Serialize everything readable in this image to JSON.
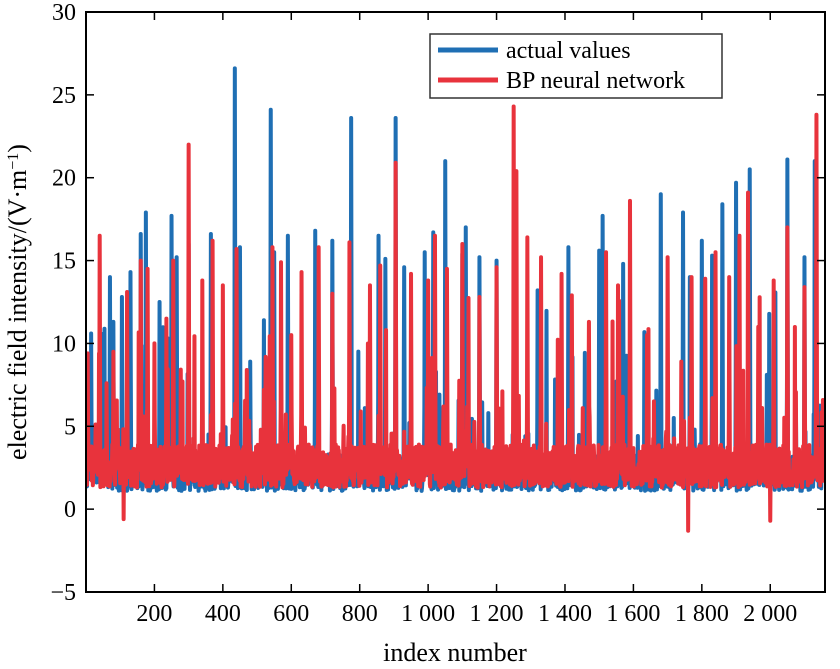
{
  "chart_data": {
    "type": "line",
    "title": "",
    "xlabel": "index number",
    "ylabel": "electric field intensity/(V·m",
    "ylabel_exp": "−1",
    "ylabel_tail": ")",
    "xlim": [
      0,
      2160
    ],
    "ylim": [
      -5,
      30
    ],
    "x_ticks": [
      {
        "value": 200,
        "label": "200"
      },
      {
        "value": 400,
        "label": "400"
      },
      {
        "value": 600,
        "label": "600"
      },
      {
        "value": 800,
        "label": "800"
      },
      {
        "value": 1000,
        "label": "1 000"
      },
      {
        "value": 1200,
        "label": "1 200"
      },
      {
        "value": 1400,
        "label": "1 400"
      },
      {
        "value": 1600,
        "label": "1 600"
      },
      {
        "value": 1800,
        "label": "1 800"
      },
      {
        "value": 2000,
        "label": "2 000"
      }
    ],
    "y_ticks": [
      {
        "value": -5,
        "label": "−5"
      },
      {
        "value": 0,
        "label": "0"
      },
      {
        "value": 5,
        "label": "5"
      },
      {
        "value": 10,
        "label": "10"
      },
      {
        "value": 15,
        "label": "15"
      },
      {
        "value": 20,
        "label": "20"
      },
      {
        "value": 25,
        "label": "25"
      },
      {
        "value": 30,
        "label": "30"
      }
    ],
    "grid": false,
    "legend_position": "top-right",
    "series": [
      {
        "name": "actual values",
        "color": "#1f6fb4",
        "baseline": 2.2,
        "noise": 1.1,
        "floor": 1.1,
        "peaks": [
          [
            15,
            10.6
          ],
          [
            70,
            14
          ],
          [
            80,
            11.3
          ],
          [
            105,
            12.8
          ],
          [
            130,
            14.3
          ],
          [
            160,
            16.6
          ],
          [
            175,
            17.9
          ],
          [
            215,
            12.5
          ],
          [
            250,
            17.7
          ],
          [
            265,
            15.2
          ],
          [
            300,
            16
          ],
          [
            365,
            16.6
          ],
          [
            435,
            26.6
          ],
          [
            450,
            15.8
          ],
          [
            480,
            8.9
          ],
          [
            520,
            11.4
          ],
          [
            540,
            24.1
          ],
          [
            550,
            15.5
          ],
          [
            590,
            16.5
          ],
          [
            670,
            16.8
          ],
          [
            720,
            16.2
          ],
          [
            775,
            23.6
          ],
          [
            855,
            16.5
          ],
          [
            875,
            15.1
          ],
          [
            905,
            23.6
          ],
          [
            930,
            14.6
          ],
          [
            990,
            15.5
          ],
          [
            1015,
            16.7
          ],
          [
            1050,
            21
          ],
          [
            1100,
            15.4
          ],
          [
            1110,
            17
          ],
          [
            1150,
            15.2
          ],
          [
            1200,
            15
          ],
          [
            1250,
            5.5
          ],
          [
            1320,
            13.2
          ],
          [
            1410,
            15.8
          ],
          [
            1500,
            15.6
          ],
          [
            1510,
            17.7
          ],
          [
            1570,
            14.8
          ],
          [
            1680,
            19
          ],
          [
            1745,
            17.9
          ],
          [
            1765,
            14
          ],
          [
            1800,
            16.2
          ],
          [
            1830,
            15.3
          ],
          [
            1860,
            18.4
          ],
          [
            1900,
            19.7
          ],
          [
            1940,
            20.5
          ],
          [
            1990,
            8.1
          ],
          [
            2050,
            21.1
          ],
          [
            2100,
            15.2
          ],
          [
            2130,
            21
          ]
        ],
        "dips": []
      },
      {
        "name": "BP neural network",
        "color": "#e8333c",
        "baseline": 2.6,
        "noise": 1.3,
        "floor": 0.8,
        "peaks": [
          [
            5,
            9.4
          ],
          [
            40,
            16.5
          ],
          [
            60,
            7.6
          ],
          [
            80,
            9.5
          ],
          [
            120,
            13.1
          ],
          [
            160,
            15
          ],
          [
            180,
            14.5
          ],
          [
            200,
            10
          ],
          [
            235,
            11.5
          ],
          [
            255,
            15
          ],
          [
            300,
            22
          ],
          [
            340,
            13.8
          ],
          [
            370,
            16.2
          ],
          [
            400,
            13.5
          ],
          [
            440,
            15.7
          ],
          [
            470,
            8.4
          ],
          [
            520,
            7.2
          ],
          [
            545,
            15.8
          ],
          [
            570,
            14.9
          ],
          [
            600,
            10.5
          ],
          [
            630,
            14.3
          ],
          [
            680,
            15.8
          ],
          [
            720,
            13
          ],
          [
            770,
            16.1
          ],
          [
            830,
            13.5
          ],
          [
            860,
            14.7
          ],
          [
            905,
            20.9
          ],
          [
            950,
            14.2
          ],
          [
            1000,
            13.8
          ],
          [
            1020,
            16.5
          ],
          [
            1055,
            14.5
          ],
          [
            1100,
            16
          ],
          [
            1150,
            12.8
          ],
          [
            1200,
            14.6
          ],
          [
            1250,
            24.3
          ],
          [
            1258,
            20.4
          ],
          [
            1290,
            16.4
          ],
          [
            1330,
            15.2
          ],
          [
            1390,
            14.2
          ],
          [
            1420,
            12.9
          ],
          [
            1470,
            11.3
          ],
          [
            1520,
            15.5
          ],
          [
            1555,
            13.5
          ],
          [
            1590,
            18.6
          ],
          [
            1640,
            10.5
          ],
          [
            1660,
            6.5
          ],
          [
            1700,
            15.2
          ],
          [
            1740,
            8.9
          ],
          [
            1770,
            14
          ],
          [
            1810,
            13.9
          ],
          [
            1840,
            15.5
          ],
          [
            1880,
            14
          ],
          [
            1910,
            16.5
          ],
          [
            1935,
            19.1
          ],
          [
            1965,
            11
          ],
          [
            2010,
            13.8
          ],
          [
            2050,
            17
          ],
          [
            2100,
            13.4
          ],
          [
            2135,
            23.8
          ]
        ],
        "dips": [
          [
            110,
            -0.6
          ],
          [
            1760,
            -1.3
          ],
          [
            2000,
            -0.7
          ]
        ]
      }
    ]
  }
}
